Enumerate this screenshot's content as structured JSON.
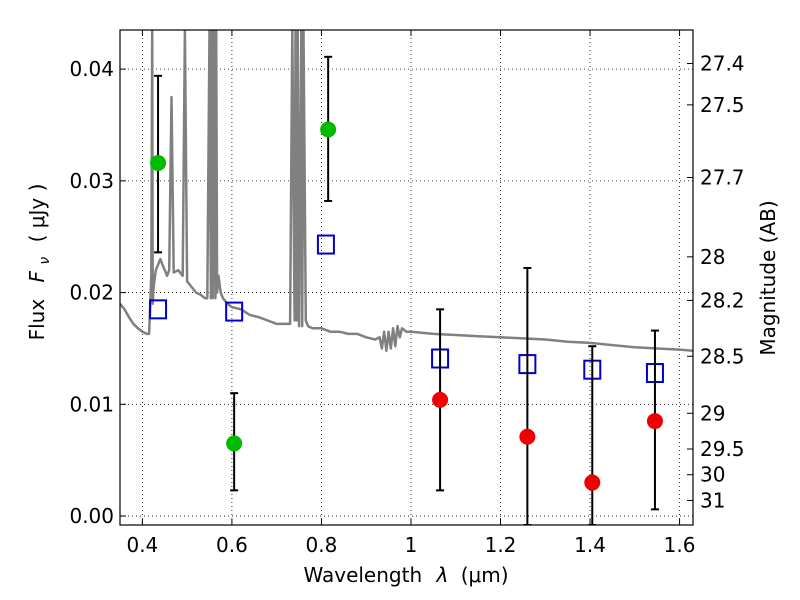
{
  "chart_data": {
    "type": "scatter",
    "xlabel": "Wavelength",
    "xlabel_symbol": "λ",
    "xlabel_unit": "(μm)",
    "ylabel": "Flux",
    "ylabel_symbol": "F",
    "ylabel_subscript": "ν",
    "ylabel_unit": "( μJy )",
    "y2label": "Magnitude (AB)",
    "xlim": [
      0.35,
      1.63
    ],
    "ylim": [
      -0.0008,
      0.0435
    ],
    "x_ticks": [
      0.4,
      0.6,
      0.8,
      1.0,
      1.2,
      1.4,
      1.6
    ],
    "x_tick_labels": [
      "0.4",
      "0.6",
      "0.8",
      "1",
      "1.2",
      "1.4",
      "1.6"
    ],
    "y_ticks": [
      0.0,
      0.01,
      0.02,
      0.03,
      0.04
    ],
    "y_tick_labels": [
      "0.00",
      "0.01",
      "0.02",
      "0.03",
      "0.04"
    ],
    "y2_ticks": [
      {
        "label": "27.4",
        "flux": 0.0405
      },
      {
        "label": "27.5",
        "flux": 0.0368
      },
      {
        "label": "27.7",
        "flux": 0.0303
      },
      {
        "label": "28",
        "flux": 0.0232
      },
      {
        "label": "28.2",
        "flux": 0.0193
      },
      {
        "label": "28.5",
        "flux": 0.0143
      },
      {
        "label": "29",
        "flux": 0.0092
      },
      {
        "label": "29.5",
        "flux": 0.006
      },
      {
        "label": "30",
        "flux": 0.0037
      },
      {
        "label": "31",
        "flux": 0.0014
      }
    ],
    "grid": true,
    "series": [
      {
        "kind": "line",
        "color": "#808080",
        "x": [
          0.35,
          0.36,
          0.37,
          0.38,
          0.39,
          0.4,
          0.41,
          0.415,
          0.42,
          0.422,
          0.423,
          0.425,
          0.43,
          0.435,
          0.44,
          0.445,
          0.45,
          0.455,
          0.46,
          0.465,
          0.47,
          0.48,
          0.49,
          0.495,
          0.5,
          0.51,
          0.52,
          0.53,
          0.54,
          0.545,
          0.55,
          0.553,
          0.555,
          0.557,
          0.56,
          0.563,
          0.565,
          0.567,
          0.57,
          0.575,
          0.58,
          0.59,
          0.6,
          0.62,
          0.64,
          0.66,
          0.68,
          0.7,
          0.72,
          0.73,
          0.735,
          0.74,
          0.742,
          0.745,
          0.747,
          0.75,
          0.755,
          0.757,
          0.76,
          0.765,
          0.77,
          0.78,
          0.8,
          0.82,
          0.84,
          0.86,
          0.88,
          0.9,
          0.92,
          0.93,
          0.935,
          0.94,
          0.945,
          0.95,
          0.955,
          0.96,
          0.965,
          0.97,
          0.975,
          0.98,
          0.99,
          1.0,
          1.05,
          1.1,
          1.15,
          1.2,
          1.25,
          1.3,
          1.35,
          1.4,
          1.45,
          1.5,
          1.55,
          1.6,
          1.63
        ],
        "y": [
          0.019,
          0.0185,
          0.0178,
          0.0172,
          0.0168,
          0.0165,
          0.0163,
          0.0163,
          0.0215,
          0.0435,
          0.019,
          0.0205,
          0.022,
          0.0225,
          0.023,
          0.0225,
          0.022,
          0.0215,
          0.022,
          0.0375,
          0.0218,
          0.022,
          0.0215,
          0.0435,
          0.021,
          0.0205,
          0.02,
          0.0198,
          0.0195,
          0.0195,
          0.0435,
          0.0195,
          0.0435,
          0.0195,
          0.0435,
          0.0195,
          0.0435,
          0.02,
          0.0215,
          0.02,
          0.0195,
          0.019,
          0.0187,
          0.0185,
          0.018,
          0.0178,
          0.0175,
          0.0172,
          0.0172,
          0.0172,
          0.0435,
          0.0175,
          0.0435,
          0.0175,
          0.0435,
          0.017,
          0.0435,
          0.017,
          0.0435,
          0.0175,
          0.017,
          0.0168,
          0.0168,
          0.0165,
          0.0165,
          0.0163,
          0.0163,
          0.016,
          0.0158,
          0.016,
          0.015,
          0.0165,
          0.0148,
          0.0165,
          0.015,
          0.0168,
          0.0152,
          0.017,
          0.016,
          0.0168,
          0.0165,
          0.0165,
          0.0163,
          0.0162,
          0.0161,
          0.016,
          0.0159,
          0.0158,
          0.0156,
          0.0155,
          0.0153,
          0.0151,
          0.015,
          0.0149,
          0.0148
        ]
      },
      {
        "kind": "open-square",
        "color": "#0000cc",
        "x": [
          0.435,
          0.605,
          0.81,
          1.065,
          1.26,
          1.405,
          1.545
        ],
        "y": [
          0.0185,
          0.0183,
          0.0243,
          0.0141,
          0.0136,
          0.0131,
          0.0128
        ]
      },
      {
        "kind": "errorbar-point",
        "color": "#00bb00",
        "x": [
          0.435,
          0.605,
          0.815
        ],
        "y": [
          0.0316,
          0.0065,
          0.0346
        ],
        "yerr_low": [
          0.0236,
          0.0023,
          0.0282
        ],
        "yerr_high": [
          0.0394,
          0.011,
          0.0411
        ]
      },
      {
        "kind": "errorbar-point",
        "color": "#ee0000",
        "x": [
          1.065,
          1.26,
          1.405,
          1.545
        ],
        "y": [
          0.0104,
          0.0071,
          0.003,
          0.0085
        ],
        "yerr_low": [
          0.0023,
          -0.0008,
          -0.0008,
          0.0006
        ],
        "yerr_high": [
          0.0185,
          0.0222,
          0.0152,
          0.0166
        ]
      }
    ]
  }
}
